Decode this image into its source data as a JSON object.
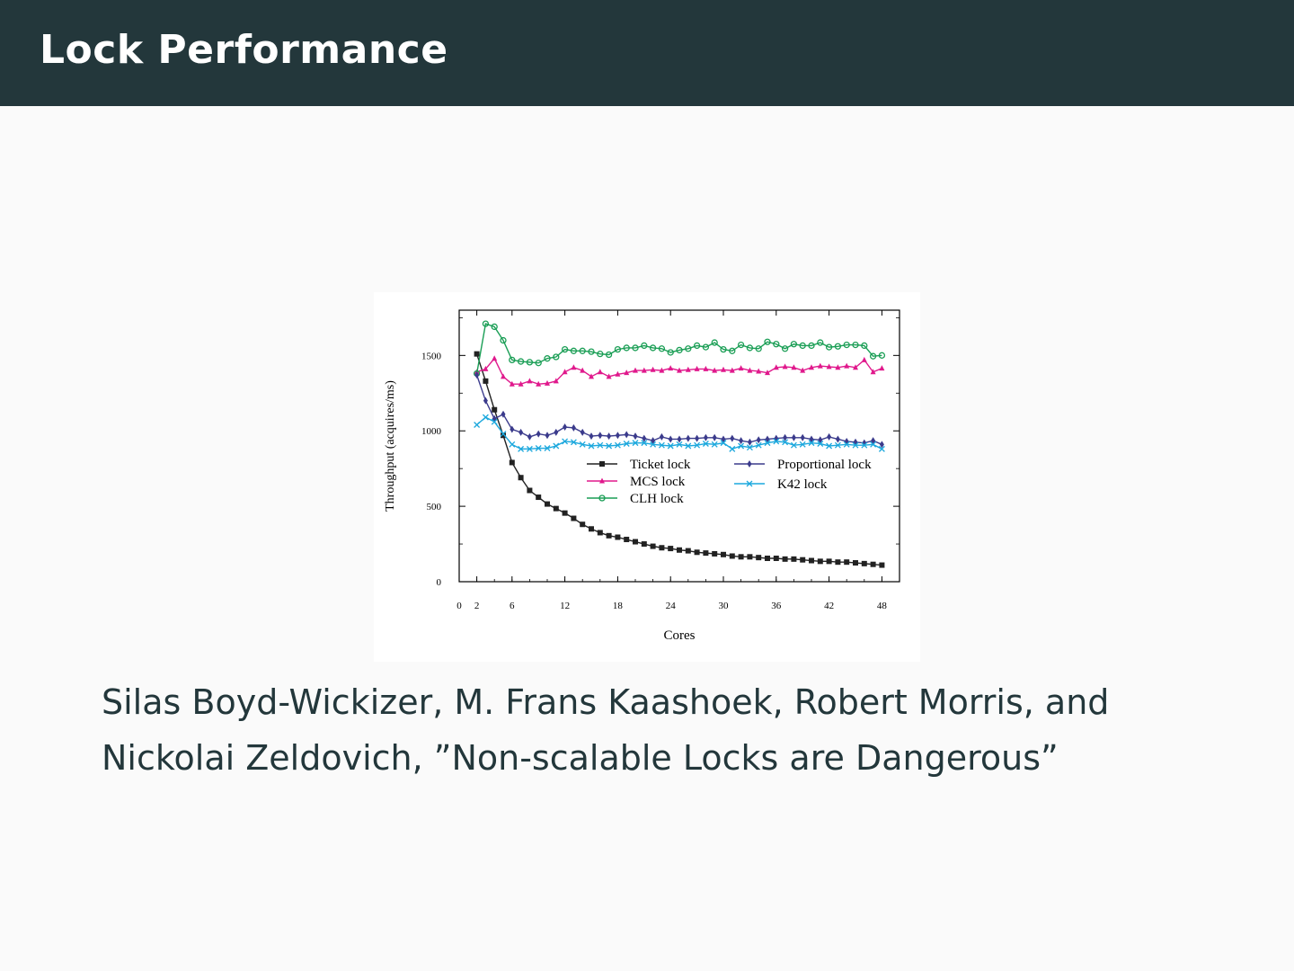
{
  "header": {
    "title": "Lock Performance"
  },
  "caption": {
    "line1": "Silas Boyd-Wickizer, M. Frans Kaashoek, Robert Morris, and",
    "line2": "Nickolai Zeldovich, ”Non-scalable Locks are Dangerous”"
  },
  "colors": {
    "header_bg": "#23373b",
    "ticket": "#222222",
    "mcs": "#e0198c",
    "clh": "#1a9e55",
    "proportional": "#3b3b8c",
    "k42": "#1ca8dd"
  },
  "chart_data": {
    "type": "line",
    "xlabel": "Cores",
    "ylabel": "Throughput (acquires/ms)",
    "xlim": [
      0,
      50
    ],
    "ylim": [
      0,
      1800
    ],
    "xticks": [
      0,
      2,
      6,
      12,
      18,
      24,
      30,
      36,
      42,
      48
    ],
    "yticks": [
      0,
      500,
      1000,
      1500
    ],
    "legend_position": "center-right",
    "x": [
      2,
      3,
      4,
      5,
      6,
      7,
      8,
      9,
      10,
      11,
      12,
      13,
      14,
      15,
      16,
      17,
      18,
      19,
      20,
      21,
      22,
      23,
      24,
      25,
      26,
      27,
      28,
      29,
      30,
      31,
      32,
      33,
      34,
      35,
      36,
      37,
      38,
      39,
      40,
      41,
      42,
      43,
      44,
      45,
      46,
      47,
      48
    ],
    "series": [
      {
        "name": "Ticket lock",
        "marker": "square",
        "color_key": "ticket",
        "values": [
          1510,
          1330,
          1140,
          970,
          790,
          690,
          605,
          560,
          515,
          485,
          455,
          420,
          380,
          350,
          325,
          305,
          295,
          280,
          265,
          250,
          235,
          225,
          220,
          210,
          205,
          195,
          190,
          185,
          180,
          170,
          165,
          165,
          160,
          155,
          155,
          150,
          150,
          145,
          140,
          135,
          135,
          130,
          130,
          125,
          120,
          115,
          110
        ]
      },
      {
        "name": "MCS lock",
        "marker": "triangle",
        "color_key": "mcs",
        "values": [
          1390,
          1410,
          1480,
          1360,
          1310,
          1310,
          1330,
          1310,
          1315,
          1330,
          1390,
          1420,
          1400,
          1360,
          1390,
          1360,
          1375,
          1385,
          1400,
          1400,
          1405,
          1400,
          1415,
          1400,
          1405,
          1410,
          1410,
          1400,
          1405,
          1400,
          1415,
          1400,
          1395,
          1385,
          1420,
          1425,
          1420,
          1400,
          1420,
          1430,
          1425,
          1420,
          1430,
          1420,
          1470,
          1390,
          1415
        ]
      },
      {
        "name": "CLH lock",
        "marker": "circle",
        "color_key": "clh",
        "values": [
          1380,
          1710,
          1690,
          1600,
          1470,
          1460,
          1455,
          1450,
          1480,
          1490,
          1540,
          1530,
          1530,
          1525,
          1510,
          1505,
          1540,
          1550,
          1550,
          1565,
          1550,
          1545,
          1520,
          1535,
          1545,
          1565,
          1555,
          1585,
          1540,
          1530,
          1570,
          1550,
          1545,
          1590,
          1575,
          1545,
          1575,
          1565,
          1565,
          1585,
          1555,
          1560,
          1570,
          1570,
          1565,
          1495,
          1500
        ]
      },
      {
        "name": "Proportional lock",
        "marker": "diamond",
        "color_key": "proportional",
        "values": [
          1370,
          1200,
          1080,
          1110,
          1010,
          990,
          960,
          980,
          970,
          990,
          1025,
          1020,
          990,
          965,
          970,
          965,
          970,
          975,
          965,
          950,
          935,
          960,
          945,
          945,
          950,
          950,
          955,
          955,
          945,
          950,
          935,
          925,
          940,
          945,
          950,
          955,
          955,
          955,
          945,
          940,
          960,
          945,
          930,
          925,
          920,
          935,
          910
        ]
      },
      {
        "name": "K42 lock",
        "marker": "cross",
        "color_key": "k42",
        "values": [
          1040,
          1090,
          1060,
          980,
          910,
          880,
          880,
          885,
          885,
          900,
          930,
          925,
          910,
          900,
          905,
          900,
          905,
          915,
          920,
          920,
          910,
          905,
          900,
          910,
          900,
          905,
          915,
          910,
          920,
          880,
          900,
          890,
          905,
          920,
          930,
          925,
          905,
          910,
          920,
          915,
          900,
          905,
          910,
          905,
          905,
          910,
          880
        ]
      }
    ]
  }
}
